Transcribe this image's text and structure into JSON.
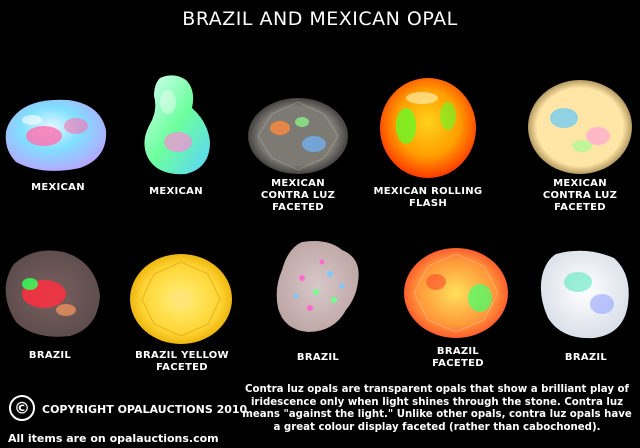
{
  "title": "BRAZIL AND MEXICAN OPAL",
  "gems": [
    {
      "label_lines": [
        "MEXICAN"
      ],
      "colors": [
        "#e9f7ff",
        "#ff6fb0",
        "#7fe0ff",
        "#b9a2ff"
      ]
    },
    {
      "label_lines": [
        "MEXICAN"
      ],
      "colors": [
        "#d8fff6",
        "#6cff9c",
        "#5ad2ff",
        "#ff8ad6"
      ]
    },
    {
      "label_lines": [
        "MEXICAN",
        "CONTRA LUZ",
        "FACETED"
      ],
      "colors": [
        "#7d7a74",
        "#ff8a3d",
        "#6fb7ff",
        "#8cff8a"
      ]
    },
    {
      "label_lines": [
        "MEXICAN ROLLING",
        "FLASH"
      ],
      "colors": [
        "#ffd21a",
        "#ff3a00",
        "#5cff2a",
        "#ff9e00"
      ]
    },
    {
      "label_lines": [
        "MEXICAN",
        "CONTRA LUZ",
        "FACETED"
      ],
      "colors": [
        "#ffe6a6",
        "#63c8ff",
        "#ff9adf",
        "#9aff90"
      ]
    },
    {
      "label_lines": [
        "BRAZIL"
      ],
      "colors": [
        "#5a4a4a",
        "#ff2f3f",
        "#35ff58",
        "#ff9a60"
      ]
    },
    {
      "label_lines": [
        "BRAZIL YELLOW",
        "FACETED"
      ],
      "colors": [
        "#ffd433",
        "#fff07a",
        "#e6a900",
        "#ffe17a"
      ]
    },
    {
      "label_lines": [
        "BRAZIL"
      ],
      "colors": [
        "#bba2a2",
        "#ff6ad0",
        "#73ff8f",
        "#7ec8ff"
      ]
    },
    {
      "label_lines": [
        "BRAZIL",
        "FACETED"
      ],
      "colors": [
        "#ff9a3a",
        "#ffe05a",
        "#4bff6a",
        "#ff4a2a"
      ]
    },
    {
      "label_lines": [
        "BRAZIL"
      ],
      "colors": [
        "#d6dde6",
        "#6fe9c7",
        "#8a9cff",
        "#ffffff"
      ]
    }
  ],
  "copyright": {
    "symbol": "©",
    "text": "COPYRIGHT OPALAUCTIONS 2010"
  },
  "website": "All items are on opalauctions.com",
  "description_lines": [
    "Contra luz  opals are transparent opals that show a brilliant play of",
    "iridescence only when light shines through the stone. Contra luz",
    "means \"against the light.\" Unlike other opals, contra luz opals have",
    "a great colour display faceted (rather than cabochoned)."
  ]
}
